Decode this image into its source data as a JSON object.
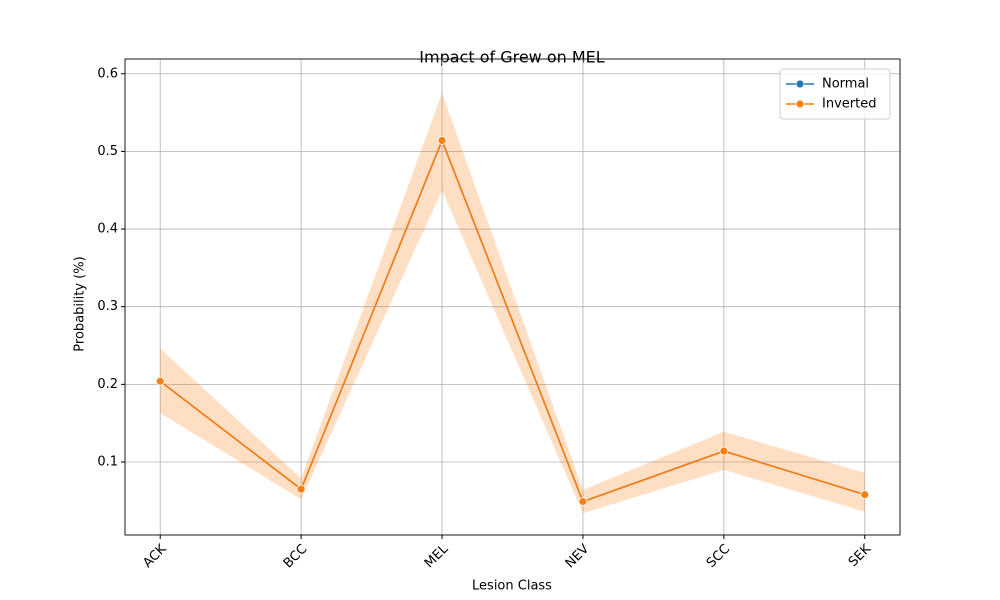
{
  "chart_data": {
    "type": "line",
    "title": "Impact of Grew on MEL",
    "x_label": "Lesion Class",
    "y_label": "Probability (%)",
    "categories": [
      "ACK",
      "BCC",
      "MEL",
      "NEV",
      "SCC",
      "SEK"
    ],
    "series": [
      {
        "name": "Normal",
        "color": "#1f77b4",
        "values": [
          0.204,
          0.065,
          0.514,
          0.049,
          0.114,
          0.058
        ]
      },
      {
        "name": "Inverted",
        "color": "#ff7f0e",
        "values": [
          0.204,
          0.065,
          0.514,
          0.049,
          0.114,
          0.058
        ],
        "ci_lower": [
          0.163,
          0.052,
          0.45,
          0.034,
          0.09,
          0.036
        ],
        "ci_upper": [
          0.246,
          0.079,
          0.575,
          0.064,
          0.139,
          0.086
        ]
      }
    ],
    "ylim": [
      0.006,
      0.619
    ],
    "yticks": [
      0.1,
      0.2,
      0.3,
      0.4,
      0.5,
      0.6
    ],
    "grid": true,
    "legend": "upper right"
  }
}
